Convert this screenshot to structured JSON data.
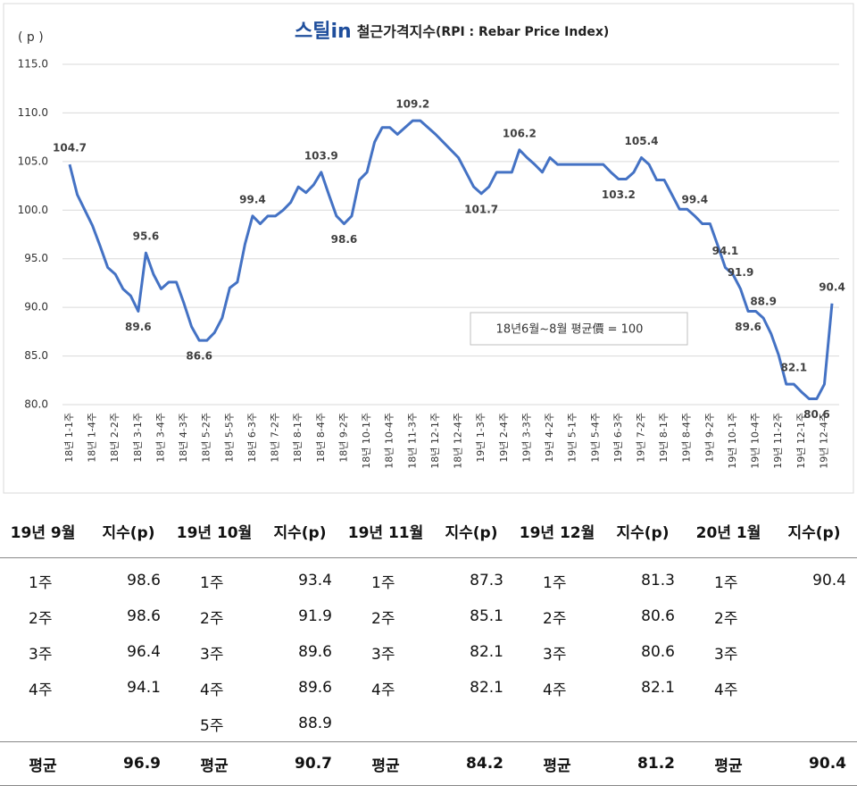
{
  "chart_data": {
    "type": "line",
    "logo": "스틸in",
    "title": "철근가격지수",
    "subtitle": "(RPI : Rebar Price Index)",
    "y_label": "( p )",
    "note": "18년6월~8월 평균價 = 100",
    "color": "#4472c4",
    "grid": true,
    "ylim": [
      80,
      115
    ],
    "yticks": [
      {
        "value": 80,
        "label": "80.0"
      },
      {
        "value": 85,
        "label": "85.0"
      },
      {
        "value": 90,
        "label": "90.0"
      },
      {
        "value": 95,
        "label": "95.0"
      },
      {
        "value": 100,
        "label": "100.0"
      },
      {
        "value": 105,
        "label": "105.0"
      },
      {
        "value": 110,
        "label": "110.0"
      },
      {
        "value": 115,
        "label": "115.0"
      }
    ],
    "categories": [
      "18년 1-1주",
      null,
      null,
      "18년 1-4주",
      null,
      null,
      "18년 2-2주",
      null,
      null,
      "18년 3-1주",
      null,
      null,
      "18년 3-4주",
      null,
      null,
      "18년 4-3주",
      null,
      null,
      "18년 5-2주",
      null,
      null,
      "18년 5-5주",
      null,
      null,
      "18년 6-3주",
      null,
      null,
      "18년 7-2주",
      null,
      null,
      "18년 8-1주",
      null,
      null,
      "18년 8-4주",
      null,
      null,
      "18년 9-2주",
      null,
      null,
      "18년 10-1주",
      null,
      null,
      "18년 10-4주",
      null,
      null,
      "18년 11-3주",
      null,
      null,
      "18년 12-1주",
      null,
      null,
      "18년 12-4주",
      null,
      null,
      "19년 1-3주",
      null,
      null,
      "19년 2-4주",
      null,
      null,
      "19년 3-3주",
      null,
      null,
      "19년 4-2주",
      null,
      null,
      "19년 5-1주",
      null,
      null,
      "19년 5-4주",
      null,
      null,
      "19년 6-3주",
      null,
      null,
      "19년 7-2주",
      null,
      null,
      "19년 8-1주",
      null,
      null,
      "19년 8-4주",
      null,
      null,
      "19년 9-2주",
      null,
      null,
      "19년 10-1주",
      null,
      null,
      "19년 10-4주",
      null,
      null,
      "19년 11-2주",
      null,
      null,
      "19년 12-1주",
      null,
      null,
      "19년 12-4주",
      null
    ],
    "values": [
      104.7,
      101.6,
      100,
      98.4,
      96.3,
      94.1,
      93.4,
      91.9,
      91.2,
      89.6,
      95.6,
      93.4,
      91.9,
      92.6,
      92.6,
      90.4,
      88,
      86.6,
      86.6,
      87.4,
      88.9,
      92,
      92.6,
      96.5,
      99.4,
      98.6,
      99.4,
      99.4,
      100,
      100.8,
      102.4,
      101.8,
      102.6,
      103.9,
      101.6,
      99.4,
      98.6,
      99.4,
      103.1,
      103.9,
      107,
      108.5,
      108.5,
      107.8,
      108.5,
      109.2,
      109.2,
      108.5,
      107.8,
      107,
      106.2,
      105.4,
      103.9,
      102.4,
      101.7,
      102.4,
      103.9,
      103.9,
      103.9,
      106.2,
      105.4,
      104.7,
      103.9,
      105.4,
      104.7,
      104.7,
      104.7,
      104.7,
      104.7,
      104.7,
      104.7,
      103.9,
      103.2,
      103.2,
      103.9,
      105.4,
      104.7,
      103.1,
      103.1,
      101.6,
      100.1,
      100.1,
      99.4,
      98.6,
      98.6,
      96.4,
      94.1,
      93.4,
      91.9,
      89.6,
      89.6,
      88.9,
      87.3,
      85.1,
      82.1,
      82.1,
      81.3,
      80.6,
      80.6,
      82.1,
      90.4
    ],
    "value_labels": [
      "104.7",
      null,
      null,
      null,
      null,
      null,
      null,
      null,
      null,
      "89.6",
      "95.6",
      null,
      null,
      null,
      null,
      null,
      null,
      "86.6",
      null,
      null,
      null,
      null,
      null,
      null,
      "99.4",
      null,
      null,
      null,
      null,
      null,
      null,
      null,
      null,
      "103.9",
      null,
      null,
      "98.6",
      null,
      null,
      null,
      null,
      null,
      null,
      null,
      null,
      "109.2",
      null,
      null,
      null,
      null,
      null,
      null,
      null,
      null,
      "101.7",
      null,
      null,
      null,
      null,
      "106.2",
      null,
      null,
      null,
      null,
      null,
      null,
      null,
      null,
      null,
      null,
      null,
      null,
      "103.2",
      null,
      null,
      "105.4",
      null,
      null,
      null,
      null,
      null,
      null,
      "99.4",
      null,
      null,
      null,
      "94.1",
      null,
      "91.9",
      "89.6",
      null,
      "88.9",
      null,
      null,
      null,
      "82.1",
      null,
      null,
      "80.6",
      null,
      "90.4"
    ]
  },
  "table": {
    "header": [
      "19년 9월",
      "지수(p)",
      "19년 10월",
      "지수(p)",
      "19년 11월",
      "지수(p)",
      "19년 12월",
      "지수(p)",
      "20년 1월",
      "지수(p)"
    ],
    "rows": [
      [
        "1주",
        "98.6",
        "1주",
        "93.4",
        "1주",
        "87.3",
        "1주",
        "81.3",
        "1주",
        "90.4"
      ],
      [
        "2주",
        "98.6",
        "2주",
        "91.9",
        "2주",
        "85.1",
        "2주",
        "80.6",
        "2주",
        null
      ],
      [
        "3주",
        "96.4",
        "3주",
        "89.6",
        "3주",
        "82.1",
        "3주",
        "80.6",
        "3주",
        null
      ],
      [
        "4주",
        "94.1",
        "4주",
        "89.6",
        "4주",
        "82.1",
        "4주",
        "82.1",
        "4주",
        null
      ],
      [
        null,
        null,
        "5주",
        "88.9",
        null,
        null,
        null,
        null,
        null,
        null
      ]
    ],
    "footer": [
      "평균",
      "96.9",
      "평균",
      "90.7",
      "평균",
      "84.2",
      "평균",
      "81.2",
      "평균",
      "90.4"
    ]
  }
}
